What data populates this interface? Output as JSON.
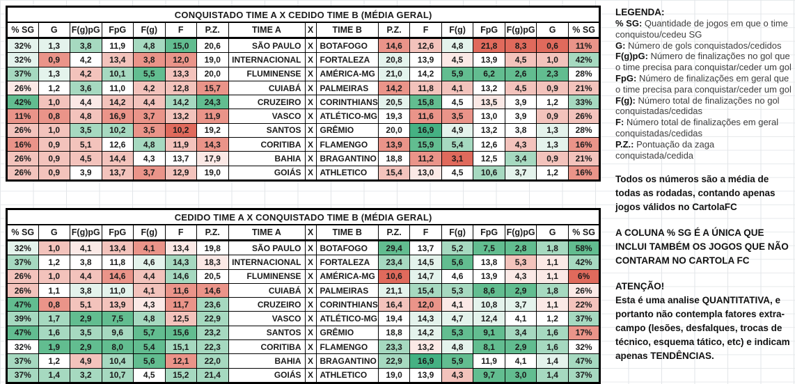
{
  "palette": {
    "g3": "#45b183",
    "g2": "#62bd90",
    "g1": "#a6d9c0",
    "g0": "#e4f3ec",
    "w": "#ffffff",
    "r0": "#fbe9e6",
    "r1": "#f3c3bc",
    "r2": "#ea9489",
    "r3": "#e06a5c"
  },
  "tables": [
    {
      "title": "CONQUISTADO TIME A X CEDIDO TIME B (MÉDIA GERAL)",
      "headers": [
        "% SG",
        "G",
        "F(g)pG",
        "FpG",
        "F(g)",
        "F",
        "P.Z.",
        "TIME A",
        "X",
        "TIME B",
        "P.Z.",
        "F",
        "F(g)",
        "FpG",
        "F(g)pG",
        "G",
        "% SG"
      ],
      "rows": [
        {
          "team_a": "SÃO PAULO",
          "x": "X",
          "team_b": "BOTAFOGO",
          "left_values": [
            "32%",
            "1,3",
            "3,8",
            "11,9",
            "4,8",
            "15,0",
            "20,6"
          ],
          "left_colors": [
            "g0",
            "g0",
            "g1",
            "w",
            "g1",
            "g2",
            "w"
          ],
          "right_values": [
            "14,6",
            "12,6",
            "4,8",
            "21,8",
            "8,3",
            "0,6",
            "11%"
          ],
          "right_colors": [
            "r2",
            "r1",
            "g0",
            "r3",
            "r3",
            "r3",
            "r2"
          ]
        },
        {
          "team_a": "INTERNACIONAL",
          "x": "X",
          "team_b": "FORTALEZA",
          "left_values": [
            "32%",
            "0,9",
            "4,2",
            "13,4",
            "3,8",
            "12,0",
            "19,0"
          ],
          "left_colors": [
            "g0",
            "r2",
            "w",
            "r1",
            "r2",
            "r2",
            "w"
          ],
          "right_values": [
            "20,8",
            "13,9",
            "4,5",
            "13,9",
            "4,5",
            "1,0",
            "42%"
          ],
          "right_colors": [
            "g0",
            "w",
            "r0",
            "w",
            "r1",
            "r1",
            "g1"
          ]
        },
        {
          "team_a": "FLUMINENSE",
          "x": "X",
          "team_b": "AMÉRICA-MG",
          "left_values": [
            "37%",
            "1,3",
            "4,2",
            "10,1",
            "5,5",
            "13,3",
            "20,0"
          ],
          "left_colors": [
            "g1",
            "g0",
            "r1",
            "g1",
            "g2",
            "r1",
            "w"
          ],
          "right_values": [
            "21,0",
            "14,2",
            "5,9",
            "6,2",
            "2,6",
            "2,3",
            "28%"
          ],
          "right_colors": [
            "g0",
            "w",
            "g2",
            "g2",
            "g2",
            "g2",
            "w"
          ]
        },
        {
          "team_a": "CUIABÁ",
          "x": "X",
          "team_b": "PALMEIRAS",
          "left_values": [
            "26%",
            "1,2",
            "3,6",
            "11,0",
            "4,2",
            "12,8",
            "15,7"
          ],
          "left_colors": [
            "r0",
            "w",
            "g1",
            "w",
            "r1",
            "r1",
            "r2"
          ],
          "right_values": [
            "14,2",
            "11,8",
            "4,1",
            "13,2",
            "4,5",
            "0,9",
            "21%"
          ],
          "right_colors": [
            "r2",
            "r1",
            "r1",
            "w",
            "r1",
            "r1",
            "r1"
          ]
        },
        {
          "team_a": "CRUZEIRO",
          "x": "X",
          "team_b": "CORINTHIANS",
          "left_values": [
            "42%",
            "1,0",
            "4,4",
            "14,2",
            "4,4",
            "14,2",
            "24,3"
          ],
          "left_colors": [
            "g2",
            "r1",
            "r0",
            "r1",
            "r1",
            "g1",
            "g2"
          ],
          "right_values": [
            "20,5",
            "15,8",
            "4,5",
            "13,5",
            "3,9",
            "1,2",
            "33%"
          ],
          "right_colors": [
            "g0",
            "g2",
            "w",
            "r0",
            "w",
            "w",
            "g1"
          ]
        },
        {
          "team_a": "VASCO",
          "x": "X",
          "team_b": "ATLÉTICO-MG",
          "left_values": [
            "11%",
            "0,8",
            "4,8",
            "16,9",
            "3,7",
            "13,2",
            "11,9"
          ],
          "left_colors": [
            "r2",
            "r2",
            "r1",
            "r2",
            "r2",
            "r1",
            "r2"
          ],
          "right_values": [
            "19,3",
            "11,6",
            "3,5",
            "13,0",
            "3,9",
            "0,9",
            "26%"
          ],
          "right_colors": [
            "w",
            "r2",
            "r2",
            "w",
            "w",
            "r1",
            "r1"
          ]
        },
        {
          "team_a": "SANTOS",
          "x": "X",
          "team_b": "GRÊMIO",
          "left_values": [
            "26%",
            "1,0",
            "3,5",
            "10,2",
            "3,5",
            "10,2",
            "19,2"
          ],
          "left_colors": [
            "r1",
            "r1",
            "g1",
            "g1",
            "r2",
            "r3",
            "w"
          ],
          "right_values": [
            "20,0",
            "16,9",
            "4,9",
            "13,2",
            "3,8",
            "1,3",
            "28%"
          ],
          "right_colors": [
            "w",
            "g3",
            "g0",
            "w",
            "w",
            "g0",
            "w"
          ]
        },
        {
          "team_a": "CORITIBA",
          "x": "X",
          "team_b": "FLAMENGO",
          "left_values": [
            "16%",
            "0,9",
            "5,1",
            "12,6",
            "4,8",
            "11,9",
            "14,3"
          ],
          "left_colors": [
            "r2",
            "r1",
            "r1",
            "w",
            "g1",
            "r1",
            "r2"
          ],
          "right_values": [
            "13,9",
            "15,9",
            "5,4",
            "12,6",
            "4,3",
            "1,3",
            "16%"
          ],
          "right_colors": [
            "r2",
            "g2",
            "g1",
            "w",
            "r1",
            "g0",
            "r2"
          ]
        },
        {
          "team_a": "BAHIA",
          "x": "X",
          "team_b": "BRAGANTINO",
          "left_values": [
            "26%",
            "0,9",
            "4,5",
            "14,4",
            "4,3",
            "13,7",
            "17,9"
          ],
          "left_colors": [
            "r1",
            "r1",
            "r1",
            "r1",
            "w",
            "w",
            "r0"
          ],
          "right_values": [
            "18,8",
            "11,2",
            "3,1",
            "12,5",
            "3,4",
            "0,9",
            "21%"
          ],
          "right_colors": [
            "w",
            "r2",
            "r3",
            "w",
            "g1",
            "r1",
            "r1"
          ]
        },
        {
          "team_a": "GOIÁS",
          "x": "X",
          "team_b": "ATHLETICO",
          "left_values": [
            "26%",
            "0,9",
            "3,9",
            "13,7",
            "3,7",
            "12,9",
            "19,0"
          ],
          "left_colors": [
            "r1",
            "r1",
            "w",
            "r1",
            "r2",
            "r1",
            "w"
          ],
          "right_values": [
            "15,4",
            "13,0",
            "4,5",
            "10,6",
            "3,7",
            "1,2",
            "16%"
          ],
          "right_colors": [
            "r1",
            "r0",
            "w",
            "g1",
            "g0",
            "w",
            "r2"
          ]
        }
      ]
    },
    {
      "title": "CEDIDO TIME A X CONQUISTADO TIME B (MÉDIA GERAL)",
      "headers": [
        "% SG",
        "G",
        "F(g)pG",
        "FpG",
        "F(g)",
        "F",
        "P.Z.",
        "TIME A",
        "X",
        "TIME B",
        "P.Z.",
        "F",
        "F(g)",
        "FpG",
        "F(g)pG",
        "G",
        "% SG"
      ],
      "rows": [
        {
          "team_a": "SÃO PAULO",
          "x": "X",
          "team_b": "BOTAFOGO",
          "left_values": [
            "32%",
            "1,0",
            "4,1",
            "13,4",
            "4,1",
            "13,4",
            "19,8"
          ],
          "left_colors": [
            "g0",
            "r1",
            "r0",
            "r1",
            "r2",
            "r0",
            "w"
          ],
          "right_values": [
            "29,4",
            "13,7",
            "5,2",
            "7,5",
            "2,8",
            "1,8",
            "58%"
          ],
          "right_colors": [
            "g2",
            "w",
            "g1",
            "g2",
            "g2",
            "g1",
            "g2"
          ]
        },
        {
          "team_a": "INTERNACIONAL",
          "x": "X",
          "team_b": "FORTALEZA",
          "left_values": [
            "37%",
            "1,2",
            "3,8",
            "11,8",
            "4,6",
            "14,3",
            "18,3"
          ],
          "left_colors": [
            "g1",
            "w",
            "w",
            "w",
            "g0",
            "g1",
            "r0"
          ],
          "right_values": [
            "23,4",
            "14,5",
            "5,6",
            "13,8",
            "5,3",
            "1,1",
            "42%"
          ],
          "right_colors": [
            "g1",
            "g0",
            "g2",
            "w",
            "r1",
            "r0",
            "g1"
          ]
        },
        {
          "team_a": "FLUMINENSE",
          "x": "X",
          "team_b": "AMÉRICA-MG",
          "left_values": [
            "26%",
            "1,0",
            "4,4",
            "14,6",
            "4,4",
            "14,6",
            "20,5"
          ],
          "left_colors": [
            "r1",
            "r1",
            "r1",
            "r2",
            "r1",
            "g1",
            "w"
          ],
          "right_values": [
            "10,6",
            "14,7",
            "4,6",
            "13,9",
            "4,3",
            "1,1",
            "6%"
          ],
          "right_colors": [
            "r3",
            "g0",
            "w",
            "w",
            "r0",
            "r0",
            "r3"
          ]
        },
        {
          "team_a": "CUIABÁ",
          "x": "X",
          "team_b": "PALMEIRAS",
          "left_values": [
            "26%",
            "1,1",
            "3,8",
            "11,0",
            "4,1",
            "11,6",
            "14,6"
          ],
          "left_colors": [
            "r1",
            "w",
            "g0",
            "g0",
            "r1",
            "r2",
            "r2"
          ],
          "right_values": [
            "21,1",
            "15,4",
            "5,3",
            "8,6",
            "2,9",
            "1,8",
            "26%"
          ],
          "right_colors": [
            "g0",
            "g1",
            "g1",
            "g2",
            "g2",
            "g1",
            "r0"
          ]
        },
        {
          "team_a": "CRUZEIRO",
          "x": "X",
          "team_b": "CORINTHIANS",
          "left_values": [
            "47%",
            "0,8",
            "5,1",
            "13,9",
            "4,3",
            "11,7",
            "23,6"
          ],
          "left_colors": [
            "g2",
            "r2",
            "r1",
            "r1",
            "r0",
            "r2",
            "g1"
          ],
          "right_values": [
            "16,4",
            "12,0",
            "4,1",
            "10,8",
            "3,7",
            "1,1",
            "22%"
          ],
          "right_colors": [
            "r1",
            "r2",
            "r0",
            "g0",
            "g0",
            "r0",
            "r1"
          ]
        },
        {
          "team_a": "VASCO",
          "x": "X",
          "team_b": "ATLÉTICO-MG",
          "left_values": [
            "39%",
            "1,7",
            "2,9",
            "7,5",
            "4,8",
            "12,5",
            "22,9"
          ],
          "left_colors": [
            "g1",
            "g1",
            "g2",
            "g2",
            "g1",
            "r1",
            "g1"
          ],
          "right_values": [
            "19,4",
            "14,3",
            "4,7",
            "12,4",
            "4,1",
            "1,2",
            "37%"
          ],
          "right_colors": [
            "w",
            "g0",
            "g0",
            "g0",
            "w",
            "w",
            "g1"
          ]
        },
        {
          "team_a": "SANTOS",
          "x": "X",
          "team_b": "GRÊMIO",
          "left_values": [
            "47%",
            "1,6",
            "3,5",
            "9,6",
            "5,7",
            "15,6",
            "23,2"
          ],
          "left_colors": [
            "g2",
            "g1",
            "g1",
            "g1",
            "g2",
            "g2",
            "g1"
          ],
          "right_values": [
            "18,8",
            "14,2",
            "5,3",
            "9,1",
            "3,4",
            "1,6",
            "17%"
          ],
          "right_colors": [
            "w",
            "g0",
            "g2",
            "g2",
            "g1",
            "g1",
            "r2"
          ]
        },
        {
          "team_a": "CORITIBA",
          "x": "X",
          "team_b": "FLAMENGO",
          "left_values": [
            "32%",
            "1,9",
            "2,9",
            "8,0",
            "5,4",
            "15,1",
            "22,3"
          ],
          "left_colors": [
            "w",
            "g2",
            "g2",
            "g2",
            "g2",
            "g1",
            "g1"
          ],
          "right_values": [
            "23,3",
            "13,2",
            "4,8",
            "8,1",
            "2,9",
            "1,6",
            "32%"
          ],
          "right_colors": [
            "g1",
            "r0",
            "g0",
            "g2",
            "g2",
            "g1",
            "w"
          ]
        },
        {
          "team_a": "BAHIA",
          "x": "X",
          "team_b": "BRAGANTINO",
          "left_values": [
            "37%",
            "1,2",
            "4,9",
            "10,4",
            "5,6",
            "12,1",
            "22,0"
          ],
          "left_colors": [
            "g1",
            "w",
            "r1",
            "g1",
            "g2",
            "r2",
            "g1"
          ],
          "right_values": [
            "22,9",
            "16,9",
            "5,9",
            "11,9",
            "4,1",
            "1,4",
            "47%"
          ],
          "right_colors": [
            "g1",
            "g3",
            "g2",
            "w",
            "w",
            "g0",
            "g1"
          ]
        },
        {
          "team_a": "GOIÁS",
          "x": "X",
          "team_b": "ATHLETICO",
          "left_values": [
            "37%",
            "1,4",
            "3,2",
            "10,7",
            "4,5",
            "15,2",
            "21,4"
          ],
          "left_colors": [
            "g1",
            "g1",
            "g1",
            "g1",
            "w",
            "g1",
            "g1"
          ],
          "right_values": [
            "19,0",
            "13,9",
            "4,3",
            "9,7",
            "3,0",
            "1,4",
            "37%"
          ],
          "right_colors": [
            "w",
            "w",
            "r1",
            "g2",
            "g2",
            "g1",
            "g1"
          ]
        }
      ]
    }
  ],
  "legend": {
    "title": "LEGENDA:",
    "items": [
      {
        "key": "% SG:",
        "desc": "Quantidade de jogos em que o time conquistou/cedeu SG"
      },
      {
        "key": "G:",
        "desc": "Número de gols conquistados/cedidos"
      },
      {
        "key": "F(g)pG:",
        "desc": "Número de finalizações no gol que o time precisa para conquistar/ceder um gol"
      },
      {
        "key": "FpG:",
        "desc": "Número de finalizações em geral que o time precisa para conquistar/ceder um gol"
      },
      {
        "key": "F(g):",
        "desc": "Número total de finalizações no gol conquistadas/cedidas"
      },
      {
        "key": "F:",
        "desc": "Número total de finalizações em geral conquistadas/cedidas"
      },
      {
        "key": "P.Z.:",
        "desc": "Pontuação da zaga conquistada/cedida"
      }
    ],
    "notes": [
      "Todos os números são a média de todas as rodadas, contando apenas jogos válidos no CartolaFC",
      "A COLUNA % SG É A ÚNICA QUE INCLUI TAMBÉM OS JOGOS QUE NÃO CONTARAM NO CARTOLA FC"
    ],
    "warning_title": "ATENÇÃO!",
    "warning_body": "Esta é uma analise QUANTITATIVA, e portanto não contempla fatores extra-campo (lesões, desfalques, trocas de técnico, esquema tático, etc) e indicam apenas TENDÊNCIAS."
  }
}
